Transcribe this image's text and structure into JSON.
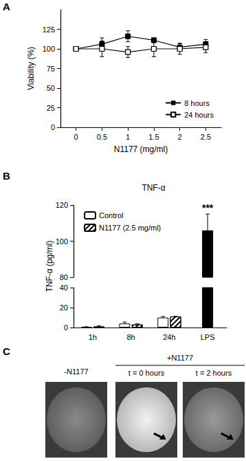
{
  "chart_data": [
    {
      "panel": "A",
      "type": "line",
      "xlabel": "N1177 (mg/ml)",
      "ylabel": "Viability (%)",
      "x": [
        0,
        0.5,
        1,
        1.5,
        2,
        2.5
      ],
      "xlim": [
        -0.3,
        2.8
      ],
      "xticks": [
        0,
        0.5,
        1,
        1.5,
        2,
        2.5
      ],
      "ylim": [
        0,
        150
      ],
      "yticks": [
        0,
        25,
        50,
        75,
        100,
        125
      ],
      "series": [
        {
          "name": "8 hours",
          "color": "#000000",
          "marker": "square",
          "values": [
            100,
            106,
            116,
            111,
            102,
            106
          ],
          "errors": [
            0,
            8,
            7,
            3,
            5,
            6
          ]
        },
        {
          "name": "24 hours",
          "color": "#000000",
          "marker": "open-square",
          "values": [
            100,
            100,
            96,
            100,
            100,
            102
          ],
          "errors": [
            0,
            10,
            7,
            10,
            7,
            7
          ]
        }
      ],
      "legend": "lower right"
    },
    {
      "panel": "B",
      "type": "bar",
      "title": "TNF-α",
      "ylabel": "TNF-α (pg/ml)",
      "categories": [
        "1h",
        "8h",
        "24h",
        "LPS"
      ],
      "ylim": [
        0,
        120
      ],
      "yticks": [
        0,
        20,
        40,
        80,
        100,
        120
      ],
      "axis_break": [
        40,
        80
      ],
      "series": [
        {
          "name": "Control",
          "color": "#ffffff",
          "values": [
            0.5,
            4,
            10,
            null
          ],
          "errors": [
            0.3,
            1.5,
            1,
            null
          ]
        },
        {
          "name": "N1177 (2.5 mg/ml)",
          "color": "#ffffff",
          "marker": "hatched",
          "values": [
            1,
            3,
            11,
            null
          ],
          "errors": [
            0.7,
            0.7,
            0.3,
            null
          ]
        },
        {
          "color": "#000000",
          "values": [
            null,
            null,
            null,
            106
          ],
          "errors": [
            null,
            null,
            null,
            9
          ]
        }
      ],
      "annotations": [
        {
          "category": "LPS",
          "text": "***"
        }
      ],
      "legend": "upper left"
    }
  ],
  "panel_c": {
    "panel": "C",
    "type": "image",
    "untreated": {
      "label": "-N1177"
    },
    "treated": {
      "label": "+N1177",
      "timepoints": [
        "t = 0 hours",
        "t = 2 hours"
      ]
    }
  }
}
